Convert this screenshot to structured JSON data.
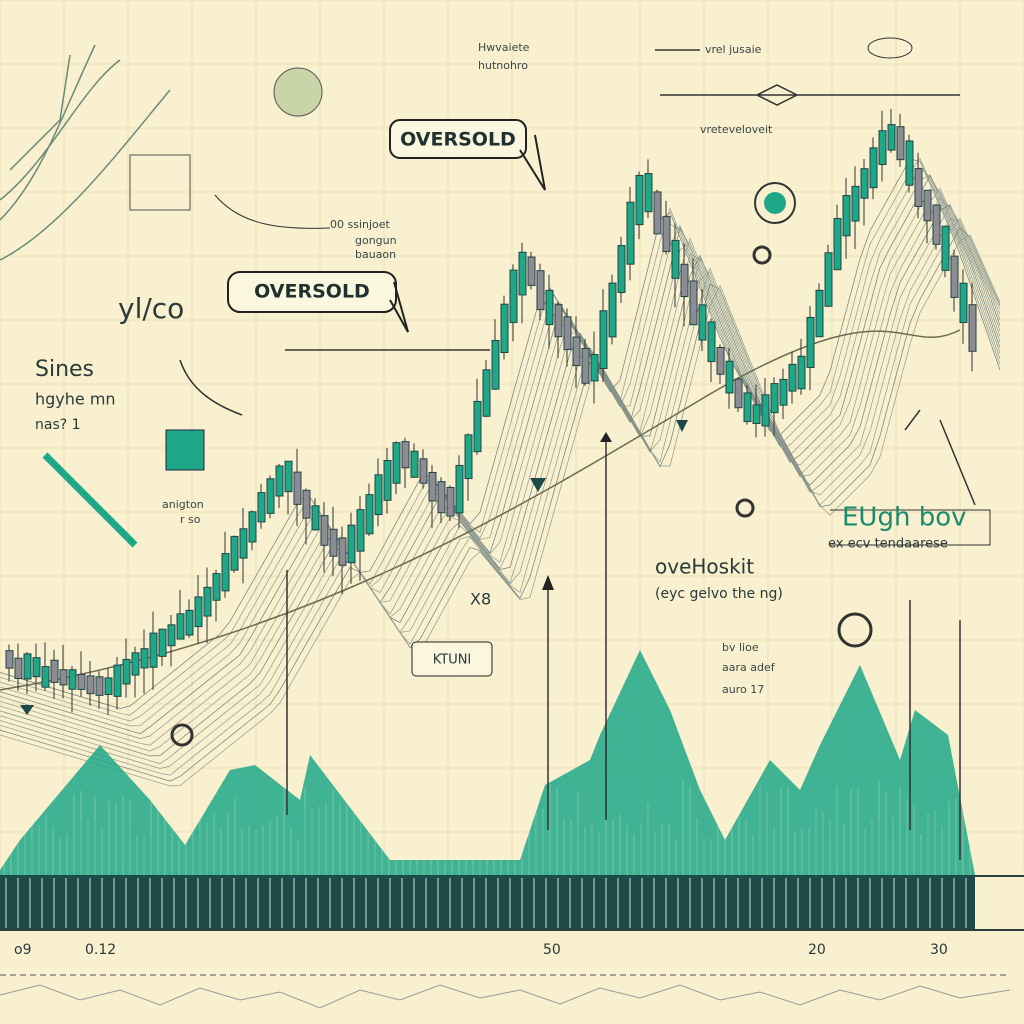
{
  "callouts": {
    "oversold_top": "OVERSOLD",
    "oversold_left": "OVERSOLD",
    "ktuni": "KTUNI"
  },
  "notes": {
    "top_a1": "Hwvaiete",
    "top_a2": "hutnohro",
    "top_b": "vrel jusaie",
    "top_c": "vreteveloveit",
    "mid_a1": "00 ssinjoet",
    "mid_a2": "gongun",
    "mid_a3": "bauaon",
    "left_logo": "yl/co",
    "left_1": "Sines",
    "left_2": "hgyhe mn",
    "left_3": "nas? 1",
    "left_4": "anigton",
    "left_5": "r so",
    "right_big": "EUgh bov",
    "right_sub": "ex ecv tendaarese",
    "center_big": "oveHoskit",
    "center_sub": "(eyc gelvo the ng)",
    "right_m1": "bv lioe",
    "right_m2": "aara adef",
    "right_m3": "auro 17",
    "mark_x8": "X8"
  },
  "axis_labels": [
    "o9",
    "0.12",
    "50",
    "20",
    "30"
  ]
}
